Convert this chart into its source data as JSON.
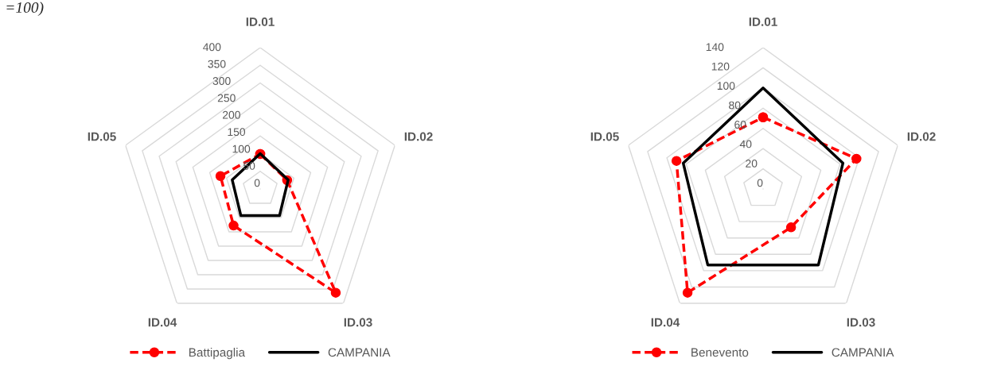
{
  "chart_data": [
    {
      "type": "radar",
      "categories": [
        "ID.01",
        "ID.02",
        "ID.03",
        "ID.04",
        "ID.05"
      ],
      "ylim": [
        0,
        400
      ],
      "yticks": [
        0,
        50,
        100,
        150,
        200,
        250,
        300,
        350,
        400
      ],
      "grid": true,
      "legend": "bottom",
      "annotations": [
        "=100)"
      ],
      "series": [
        {
          "name": "Battipaglia",
          "color": "#ff0000",
          "values": [
            99,
            80,
            363,
            128,
            118
          ],
          "marker": "circle",
          "line_style": "dashed"
        },
        {
          "name": "CAMPANIA",
          "color": "#000000",
          "values": [
            100,
            83,
            93,
            93,
            83
          ],
          "marker": "none",
          "line_style": "solid"
        }
      ]
    },
    {
      "type": "radar",
      "categories": [
        "ID.01",
        "ID.02",
        "ID.03",
        "ID.04",
        "ID.05"
      ],
      "ylim": [
        0,
        140
      ],
      "yticks": [
        0,
        20,
        40,
        60,
        80,
        100,
        120,
        140
      ],
      "grid": true,
      "legend": "bottom",
      "series": [
        {
          "name": "Benevento",
          "color": "#ff0000",
          "values": [
            71,
            97,
            47,
            127,
            90
          ],
          "marker": "circle",
          "line_style": "dashed"
        },
        {
          "name": "CAMPANIA",
          "color": "#000000",
          "values": [
            100,
            83,
            93,
            93,
            83
          ],
          "marker": "none",
          "line_style": "solid"
        }
      ]
    }
  ]
}
